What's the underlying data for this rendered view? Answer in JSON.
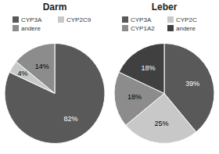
{
  "chart_data": [
    {
      "type": "pie",
      "title": "Darm",
      "categories": [
        "CYP3A",
        "CYP2C9",
        "andere"
      ],
      "values": [
        82,
        4,
        14
      ],
      "value_labels": [
        "82%",
        "4%",
        "14%"
      ],
      "colors": [
        "#595959",
        "#c8c8c8",
        "#8c8c8c"
      ],
      "data_labels": true,
      "legend": "top"
    },
    {
      "type": "pie",
      "title": "Leber",
      "categories": [
        "CYP3A",
        "CYP2C",
        "CYP1A2",
        "andere"
      ],
      "values": [
        39,
        25,
        18,
        18
      ],
      "value_labels": [
        "39%",
        "25%",
        "18%",
        "18%"
      ],
      "colors": [
        "#595959",
        "#c8c8c8",
        "#8c8c8c",
        "#404040"
      ],
      "data_labels": true,
      "legend": "top"
    }
  ]
}
